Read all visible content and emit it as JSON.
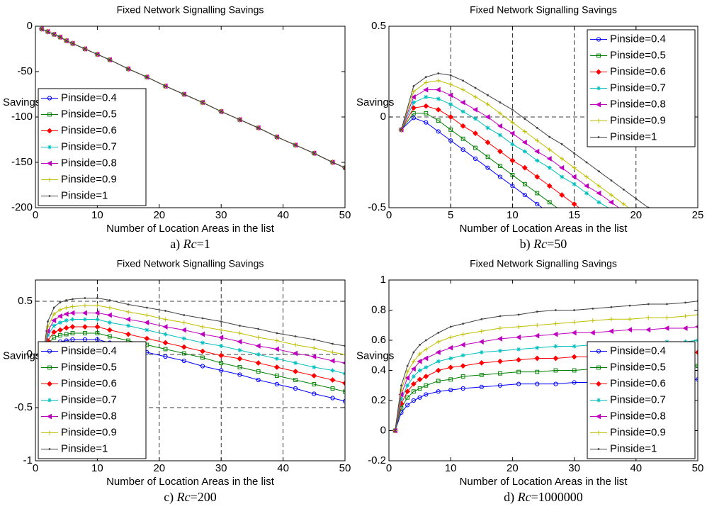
{
  "chart_data": [
    {
      "type": "line",
      "title": "Fixed Network Signalling Savings",
      "x_label": "Number of Location Areas in the list",
      "y_label": "Savings",
      "caption": {
        "label": "a)",
        "var": "Rc",
        "value": "=1"
      },
      "xlim": [
        0,
        50
      ],
      "xticks": [
        0,
        10,
        20,
        30,
        40,
        50
      ],
      "ylim": [
        -200,
        0
      ],
      "yticks": [
        -200,
        -150,
        -100,
        -50,
        0
      ],
      "grid_x": [],
      "grid_y": [],
      "legend": "lower left",
      "x": [
        1,
        2,
        3,
        4,
        5,
        6,
        8,
        10,
        12,
        15,
        18,
        21,
        24,
        27,
        30,
        33,
        36,
        39,
        42,
        45,
        48,
        50
      ],
      "series": [
        {
          "name": "Pinside=0.4",
          "color": "#0000ff",
          "marker": "o",
          "values": [
            -3,
            -6,
            -9,
            -12,
            -16,
            -19,
            -25,
            -31,
            -37,
            -47,
            -56,
            -66,
            -75,
            -84,
            -94,
            -103,
            -112,
            -122,
            -131,
            -140,
            -150,
            -156
          ]
        },
        {
          "name": "Pinside=0.5",
          "color": "#008000",
          "marker": "s",
          "values": [
            -3,
            -6,
            -9,
            -12,
            -16,
            -19,
            -25,
            -31,
            -37,
            -47,
            -56,
            -66,
            -75,
            -84,
            -94,
            -103,
            -112,
            -122,
            -131,
            -140,
            -150,
            -156
          ]
        },
        {
          "name": "Pinside=0.6",
          "color": "#ff0000",
          "marker": "d",
          "values": [
            -3,
            -6,
            -9,
            -12,
            -16,
            -19,
            -25,
            -31,
            -37,
            -47,
            -56,
            -66,
            -75,
            -84,
            -94,
            -103,
            -112,
            -122,
            -131,
            -140,
            -150,
            -156
          ]
        },
        {
          "name": "Pinside=0.7",
          "color": "#00bfbf",
          "marker": "*",
          "values": [
            -3,
            -6,
            -9,
            -12,
            -16,
            -19,
            -25,
            -31,
            -37,
            -47,
            -56,
            -66,
            -75,
            -84,
            -94,
            -103,
            -112,
            -122,
            -131,
            -140,
            -150,
            -156
          ]
        },
        {
          "name": "Pinside=0.8",
          "color": "#bf00bf",
          "marker": "<",
          "values": [
            -3,
            -6,
            -9,
            -12,
            -16,
            -19,
            -25,
            -31,
            -37,
            -47,
            -56,
            -66,
            -75,
            -84,
            -94,
            -103,
            -112,
            -122,
            -131,
            -140,
            -150,
            -156
          ]
        },
        {
          "name": "Pinside=0.9",
          "color": "#bfbf00",
          "marker": "+",
          "values": [
            -3,
            -6,
            -9,
            -12,
            -16,
            -19,
            -25,
            -31,
            -37,
            -47,
            -56,
            -66,
            -75,
            -84,
            -94,
            -103,
            -112,
            -122,
            -131,
            -140,
            -150,
            -156
          ]
        },
        {
          "name": "Pinside=1",
          "color": "#404040",
          "marker": ".",
          "values": [
            -3,
            -6,
            -9,
            -12,
            -16,
            -19,
            -25,
            -31,
            -37,
            -47,
            -56,
            -66,
            -75,
            -84,
            -94,
            -103,
            -112,
            -122,
            -131,
            -140,
            -150,
            -156
          ]
        }
      ]
    },
    {
      "type": "line",
      "title": "Fixed Network Signalling Savings",
      "x_label": "Number of Location Areas in the list",
      "y_label": "Savings",
      "caption": {
        "label": "b)",
        "var": "Rc",
        "value": "=50"
      },
      "xlim": [
        0,
        25
      ],
      "xticks": [
        0,
        5,
        10,
        15,
        20,
        25
      ],
      "ylim": [
        -0.5,
        0.5
      ],
      "yticks": [
        -0.5,
        0,
        0.5
      ],
      "grid_x": [
        5,
        10,
        15,
        20
      ],
      "grid_y": [
        0
      ],
      "legend": "upper right",
      "x": [
        1,
        2,
        3,
        4,
        5,
        6,
        7,
        8,
        9,
        10,
        11,
        12,
        13,
        14,
        15,
        16,
        17,
        18,
        19,
        20,
        21,
        22
      ],
      "series": [
        {
          "name": "Pinside=0.4",
          "color": "#0000ff",
          "marker": "o",
          "values": [
            -0.07,
            -0.005,
            -0.03,
            -0.08,
            -0.13,
            -0.18,
            -0.23,
            -0.28,
            -0.33,
            -0.38,
            -0.43,
            -0.48,
            -0.53,
            null,
            null,
            null,
            null,
            null,
            null,
            null,
            null,
            null
          ]
        },
        {
          "name": "Pinside=0.5",
          "color": "#008000",
          "marker": "s",
          "values": [
            -0.07,
            0.02,
            0.02,
            -0.02,
            -0.07,
            -0.12,
            -0.17,
            -0.22,
            -0.27,
            -0.32,
            -0.37,
            -0.42,
            -0.47,
            -0.52,
            null,
            null,
            null,
            null,
            null,
            null,
            null,
            null
          ]
        },
        {
          "name": "Pinside=0.6",
          "color": "#ff0000",
          "marker": "d",
          "values": [
            -0.07,
            0.05,
            0.06,
            0.04,
            0.0,
            -0.05,
            -0.09,
            -0.14,
            -0.19,
            -0.24,
            -0.28,
            -0.33,
            -0.38,
            -0.43,
            -0.48,
            -0.53,
            null,
            null,
            null,
            null,
            null,
            null
          ]
        },
        {
          "name": "Pinside=0.7",
          "color": "#00bfbf",
          "marker": "*",
          "values": [
            -0.07,
            0.08,
            0.11,
            0.1,
            0.07,
            0.03,
            -0.01,
            -0.06,
            -0.1,
            -0.15,
            -0.19,
            -0.24,
            -0.28,
            -0.33,
            -0.37,
            -0.42,
            -0.47,
            -0.51,
            null,
            null,
            null,
            null
          ]
        },
        {
          "name": "Pinside=0.8",
          "color": "#bf00bf",
          "marker": "<",
          "values": [
            -0.07,
            0.11,
            0.15,
            0.15,
            0.12,
            0.08,
            0.04,
            0.0,
            -0.05,
            -0.09,
            -0.14,
            -0.19,
            -0.23,
            -0.28,
            -0.33,
            -0.38,
            -0.42,
            -0.47,
            -0.52,
            null,
            null,
            null
          ]
        },
        {
          "name": "Pinside=0.9",
          "color": "#bfbf00",
          "marker": "+",
          "values": [
            -0.07,
            0.14,
            0.19,
            0.2,
            0.18,
            0.15,
            0.11,
            0.07,
            0.02,
            -0.03,
            -0.08,
            -0.13,
            -0.18,
            -0.23,
            -0.28,
            -0.33,
            -0.38,
            -0.43,
            -0.48,
            -0.53,
            null,
            null
          ]
        },
        {
          "name": "Pinside=1",
          "color": "#404040",
          "marker": ".",
          "values": [
            -0.07,
            0.17,
            0.22,
            0.24,
            0.23,
            0.2,
            0.16,
            0.12,
            0.08,
            0.04,
            -0.01,
            -0.06,
            -0.11,
            -0.15,
            -0.2,
            -0.25,
            -0.3,
            -0.35,
            -0.4,
            -0.45,
            -0.5,
            -0.55
          ]
        }
      ]
    },
    {
      "type": "line",
      "title": "Fixed Network Signalling Savings",
      "x_label": "Number of Location Areas in the list",
      "y_label": "Savings",
      "caption": {
        "label": "c)",
        "var": "Rc",
        "value": "=200"
      },
      "xlim": [
        0,
        50
      ],
      "xticks": [
        0,
        10,
        20,
        30,
        40,
        50
      ],
      "ylim": [
        -1,
        0.7
      ],
      "yticks": [
        -1,
        -0.5,
        0,
        0.5
      ],
      "grid_x": [
        10,
        20,
        30,
        40
      ],
      "grid_y": [
        -0.5,
        0,
        0.5
      ],
      "legend": "lower left",
      "x": [
        1,
        2,
        3,
        4,
        5,
        6,
        8,
        10,
        12,
        15,
        18,
        21,
        24,
        27,
        30,
        33,
        36,
        39,
        42,
        45,
        48,
        50
      ],
      "series": [
        {
          "name": "Pinside=0.4",
          "color": "#0000ff",
          "marker": "o",
          "values": [
            -0.1,
            0.06,
            0.1,
            0.12,
            0.13,
            0.14,
            0.14,
            0.14,
            0.11,
            0.07,
            0.02,
            -0.02,
            -0.06,
            -0.11,
            -0.15,
            -0.19,
            -0.24,
            -0.28,
            -0.32,
            -0.37,
            -0.41,
            -0.44
          ]
        },
        {
          "name": "Pinside=0.5",
          "color": "#008000",
          "marker": "s",
          "values": [
            -0.1,
            0.1,
            0.16,
            0.18,
            0.19,
            0.2,
            0.2,
            0.2,
            0.17,
            0.13,
            0.09,
            0.05,
            0.01,
            -0.03,
            -0.08,
            -0.12,
            -0.16,
            -0.2,
            -0.24,
            -0.28,
            -0.32,
            -0.35
          ]
        },
        {
          "name": "Pinside=0.6",
          "color": "#ff0000",
          "marker": "d",
          "values": [
            -0.1,
            0.13,
            0.21,
            0.23,
            0.25,
            0.26,
            0.26,
            0.26,
            0.23,
            0.19,
            0.15,
            0.11,
            0.07,
            0.03,
            -0.01,
            -0.04,
            -0.08,
            -0.12,
            -0.16,
            -0.2,
            -0.24,
            -0.27
          ]
        },
        {
          "name": "Pinside=0.7",
          "color": "#00bfbf",
          "marker": "*",
          "values": [
            -0.1,
            0.18,
            0.27,
            0.3,
            0.32,
            0.33,
            0.33,
            0.33,
            0.3,
            0.27,
            0.23,
            0.19,
            0.15,
            0.11,
            0.08,
            0.04,
            0.0,
            -0.04,
            -0.08,
            -0.12,
            -0.15,
            -0.18
          ]
        },
        {
          "name": "Pinside=0.8",
          "color": "#bf00bf",
          "marker": "<",
          "values": [
            -0.1,
            0.22,
            0.32,
            0.36,
            0.38,
            0.39,
            0.39,
            0.39,
            0.37,
            0.33,
            0.3,
            0.26,
            0.23,
            0.19,
            0.16,
            0.12,
            0.08,
            0.05,
            0.01,
            -0.02,
            -0.06,
            -0.08
          ]
        },
        {
          "name": "Pinside=0.9",
          "color": "#bfbf00",
          "marker": "+",
          "values": [
            -0.1,
            0.26,
            0.38,
            0.42,
            0.44,
            0.45,
            0.46,
            0.46,
            0.44,
            0.4,
            0.37,
            0.33,
            0.3,
            0.26,
            0.23,
            0.2,
            0.16,
            0.13,
            0.09,
            0.06,
            0.02,
            0
          ]
        },
        {
          "name": "Pinside=1",
          "color": "#404040",
          "marker": ".",
          "values": [
            -0.1,
            0.31,
            0.44,
            0.49,
            0.51,
            0.52,
            0.53,
            0.53,
            0.51,
            0.47,
            0.44,
            0.41,
            0.37,
            0.34,
            0.31,
            0.27,
            0.24,
            0.2,
            0.17,
            0.14,
            0.1,
            0.08
          ]
        }
      ]
    },
    {
      "type": "line",
      "title": "Fixed Network Signalling Savings",
      "x_label": "Number of Location Areas in the list",
      "y_label": "Savings",
      "caption": {
        "label": "d)",
        "var": "Rc",
        "value": "=1000000"
      },
      "xlim": [
        0,
        50
      ],
      "xticks": [
        0,
        10,
        20,
        30,
        40,
        50
      ],
      "ylim": [
        -0.2,
        1
      ],
      "yticks": [
        -0.2,
        0,
        0.2,
        0.4,
        0.6,
        0.8,
        1
      ],
      "grid_x": [],
      "grid_y": [],
      "legend": "lower right",
      "x": [
        1,
        2,
        3,
        4,
        5,
        6,
        8,
        10,
        12,
        15,
        18,
        21,
        24,
        27,
        30,
        33,
        36,
        39,
        42,
        45,
        48,
        50
      ],
      "series": [
        {
          "name": "Pinside=0.4",
          "color": "#0000ff",
          "marker": "o",
          "values": [
            0,
            0.12,
            0.17,
            0.2,
            0.22,
            0.24,
            0.26,
            0.27,
            0.28,
            0.29,
            0.3,
            0.31,
            0.31,
            0.31,
            0.32,
            0.32,
            0.32,
            0.33,
            0.33,
            0.33,
            0.34,
            0.34
          ]
        },
        {
          "name": "Pinside=0.5",
          "color": "#008000",
          "marker": "s",
          "values": [
            0,
            0.15,
            0.22,
            0.26,
            0.28,
            0.3,
            0.33,
            0.34,
            0.36,
            0.37,
            0.38,
            0.39,
            0.39,
            0.4,
            0.4,
            0.41,
            0.41,
            0.41,
            0.42,
            0.42,
            0.43,
            0.43
          ]
        },
        {
          "name": "Pinside=0.6",
          "color": "#ff0000",
          "marker": "d",
          "values": [
            0,
            0.18,
            0.26,
            0.31,
            0.34,
            0.36,
            0.4,
            0.42,
            0.43,
            0.45,
            0.46,
            0.47,
            0.48,
            0.48,
            0.49,
            0.49,
            0.5,
            0.5,
            0.51,
            0.51,
            0.51,
            0.52
          ]
        },
        {
          "name": "Pinside=0.7",
          "color": "#00bfbf",
          "marker": "*",
          "values": [
            0,
            0.21,
            0.3,
            0.36,
            0.4,
            0.42,
            0.46,
            0.48,
            0.5,
            0.52,
            0.53,
            0.54,
            0.55,
            0.56,
            0.56,
            0.57,
            0.57,
            0.58,
            0.58,
            0.59,
            0.59,
            0.6
          ]
        },
        {
          "name": "Pinside=0.8",
          "color": "#bf00bf",
          "marker": "<",
          "values": [
            0,
            0.24,
            0.35,
            0.41,
            0.46,
            0.48,
            0.52,
            0.55,
            0.57,
            0.59,
            0.61,
            0.62,
            0.63,
            0.64,
            0.65,
            0.65,
            0.66,
            0.67,
            0.67,
            0.68,
            0.68,
            0.69
          ]
        },
        {
          "name": "Pinside=0.9",
          "color": "#bfbf00",
          "marker": "+",
          "values": [
            0,
            0.27,
            0.39,
            0.46,
            0.51,
            0.54,
            0.59,
            0.62,
            0.64,
            0.66,
            0.68,
            0.69,
            0.7,
            0.71,
            0.72,
            0.73,
            0.74,
            0.74,
            0.75,
            0.75,
            0.76,
            0.77
          ]
        },
        {
          "name": "Pinside=1",
          "color": "#404040",
          "marker": ".",
          "values": [
            0,
            0.3,
            0.43,
            0.52,
            0.57,
            0.6,
            0.65,
            0.69,
            0.71,
            0.74,
            0.76,
            0.77,
            0.79,
            0.8,
            0.8,
            0.81,
            0.82,
            0.83,
            0.84,
            0.84,
            0.85,
            0.86
          ]
        }
      ]
    }
  ]
}
